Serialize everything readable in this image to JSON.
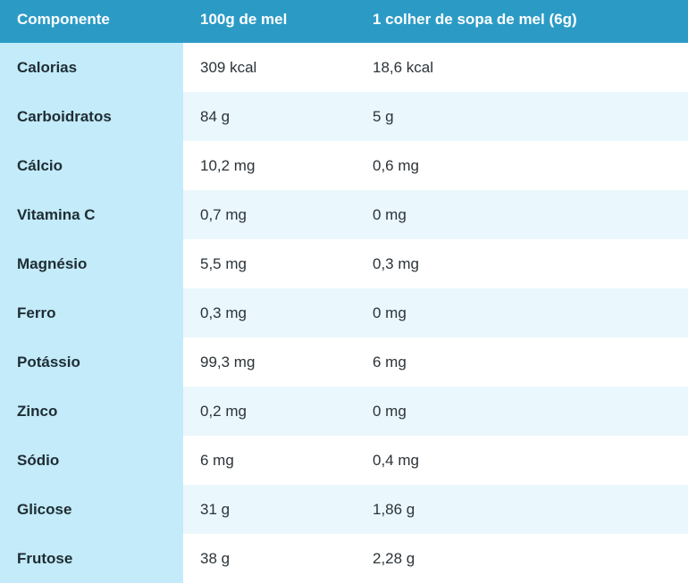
{
  "table": {
    "headers": [
      "Componente",
      "100g de mel",
      "1 colher de sopa de mel (6g)"
    ],
    "rows": [
      [
        "Calorias",
        "309 kcal",
        "18,6 kcal"
      ],
      [
        "Carboidratos",
        "84 g",
        "5 g"
      ],
      [
        "Cálcio",
        "10,2 mg",
        "0,6 mg"
      ],
      [
        "Vitamina C",
        "0,7 mg",
        "0 mg"
      ],
      [
        "Magnésio",
        "5,5 mg",
        "0,3 mg"
      ],
      [
        "Ferro",
        "0,3 mg",
        "0 mg"
      ],
      [
        "Potássio",
        "99,3 mg",
        "6 mg"
      ],
      [
        "Zinco",
        "0,2 mg",
        "0 mg"
      ],
      [
        "Sódio",
        "6 mg",
        "0,4 mg"
      ],
      [
        "Glicose",
        "31 g",
        "1,86 g"
      ],
      [
        "Frutose",
        "38 g",
        "2,28 g"
      ]
    ]
  },
  "colors": {
    "header_bg": "#2b9bc6",
    "first_column_bg": "#c3ebfa",
    "stripe_bg": "#eaf7fd",
    "row_bg": "#ffffff"
  }
}
